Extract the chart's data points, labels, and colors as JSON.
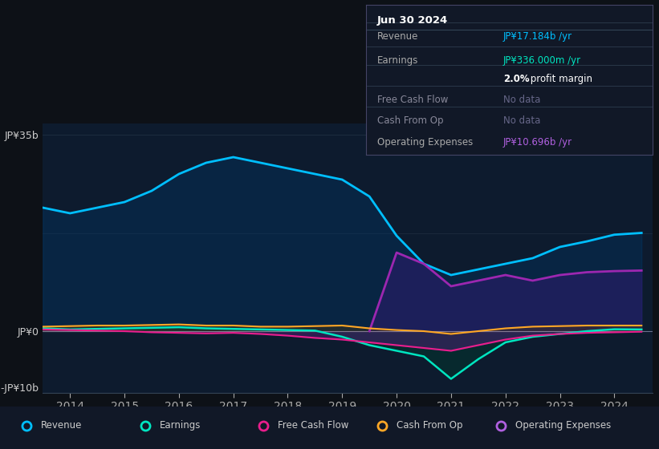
{
  "bg_color": "#0d1117",
  "years_x": [
    2013.5,
    2014.0,
    2014.5,
    2015.0,
    2015.5,
    2016.0,
    2016.5,
    2017.0,
    2017.5,
    2018.0,
    2018.5,
    2019.0,
    2019.5,
    2020.0,
    2020.5,
    2021.0,
    2021.5,
    2022.0,
    2022.5,
    2023.0,
    2023.5,
    2024.0,
    2024.5
  ],
  "revenue": [
    22,
    21,
    22,
    23,
    25,
    28,
    30,
    31,
    30,
    29,
    28,
    27,
    24,
    17,
    12,
    10,
    11,
    12,
    13,
    15,
    16,
    17.184,
    17.5
  ],
  "earnings": [
    0.5,
    0.3,
    0.4,
    0.5,
    0.6,
    0.7,
    0.5,
    0.4,
    0.3,
    0.2,
    0.1,
    -1.0,
    -2.5,
    -3.5,
    -4.5,
    -8.5,
    -5.0,
    -2.0,
    -1.0,
    -0.5,
    0.0,
    0.336,
    0.3
  ],
  "free_cash_flow": [
    0.3,
    0.2,
    0.1,
    0.0,
    -0.2,
    -0.3,
    -0.4,
    -0.3,
    -0.5,
    -0.8,
    -1.2,
    -1.5,
    -2.0,
    -2.5,
    -3.0,
    -3.5,
    -2.5,
    -1.5,
    -0.8,
    -0.5,
    -0.3,
    -0.2,
    -0.1
  ],
  "cash_from_op": [
    0.8,
    0.9,
    1.0,
    1.0,
    1.1,
    1.2,
    1.0,
    1.0,
    0.8,
    0.8,
    0.9,
    1.0,
    0.5,
    0.2,
    0.0,
    -0.5,
    0.0,
    0.5,
    0.8,
    0.9,
    1.0,
    1.0,
    1.0
  ],
  "op_expenses_x": [
    2019.5,
    2020.0,
    2020.5,
    2021.0,
    2021.5,
    2022.0,
    2022.5,
    2023.0,
    2023.5,
    2024.0,
    2024.5
  ],
  "op_expenses": [
    0,
    14,
    12,
    8,
    9,
    10,
    9,
    10,
    10.5,
    10.696,
    10.8
  ],
  "ylim_min": -11,
  "ylim_max": 37,
  "xticks": [
    2014,
    2015,
    2016,
    2017,
    2018,
    2019,
    2020,
    2021,
    2022,
    2023,
    2024
  ],
  "revenue_color": "#00bfff",
  "earnings_color": "#00e5c0",
  "fcf_color": "#e91e8c",
  "cash_op_color": "#ffa726",
  "op_exp_color": "#9c27b0",
  "legend_labels": [
    "Revenue",
    "Earnings",
    "Free Cash Flow",
    "Cash From Op",
    "Operating Expenses"
  ],
  "legend_colors": [
    "#00bfff",
    "#00e5c0",
    "#e91e8c",
    "#ffa726",
    "#b060e0"
  ],
  "info_title": "Jun 30 2024",
  "info_rows": [
    {
      "label": "Revenue",
      "value": "JP¥17.184b /yr",
      "value_color": "#00bfff",
      "dim": false
    },
    {
      "label": "Earnings",
      "value": "JP¥336.000m /yr",
      "value_color": "#00e5c0",
      "dim": false
    },
    {
      "label": "",
      "value": "2.0% profit margin",
      "value_color": "#ffffff",
      "dim": false
    },
    {
      "label": "Free Cash Flow",
      "value": "No data",
      "value_color": "#666688",
      "dim": true
    },
    {
      "label": "Cash From Op",
      "value": "No data",
      "value_color": "#666688",
      "dim": true
    },
    {
      "label": "Operating Expenses",
      "value": "JP¥10.696b /yr",
      "value_color": "#b060e0",
      "dim": false
    }
  ]
}
